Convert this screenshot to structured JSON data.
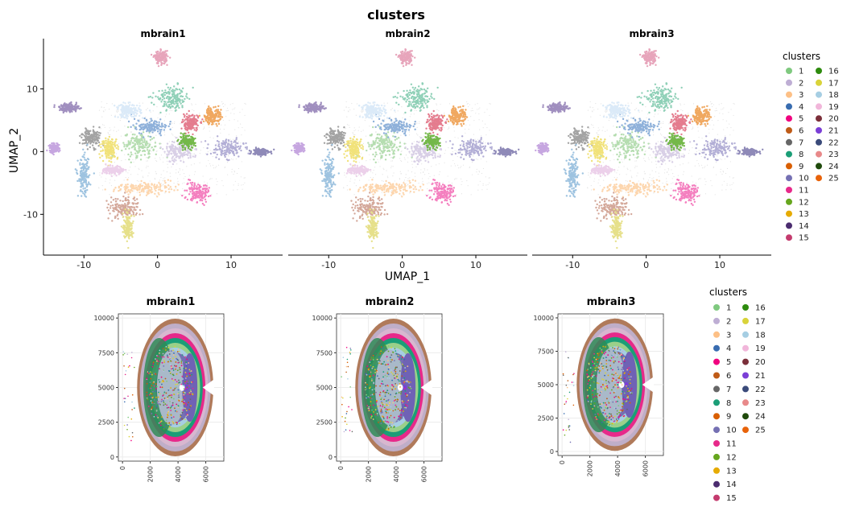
{
  "title": "clusters",
  "umap": {
    "xlabel": "UMAP_1",
    "ylabel": "UMAP_2",
    "xticks": [
      "-10",
      "0",
      "10"
    ],
    "xtick_values": [
      -10,
      0,
      10
    ],
    "yticks": [
      "10",
      "0",
      "-10"
    ],
    "ytick_values": [
      10,
      0,
      -10
    ],
    "xlim": [
      -15.5,
      17
    ],
    "ylim": [
      -16.5,
      18
    ],
    "panels": [
      "mbrain1",
      "mbrain2",
      "mbrain3"
    ]
  },
  "spatial": {
    "xticks": [
      "0",
      "2000",
      "4000",
      "6000"
    ],
    "xtick_values": [
      0,
      2000,
      4000,
      6000
    ],
    "yticks": [
      "10000",
      "7500",
      "5000",
      "2500",
      "0"
    ],
    "ytick_values": [
      10000,
      7500,
      5000,
      2500,
      0
    ],
    "xlim": [
      -300,
      7300
    ],
    "ylim": [
      -300,
      10300
    ],
    "panels": [
      "mbrain1",
      "mbrain2",
      "mbrain3"
    ]
  },
  "legend": {
    "title": "clusters",
    "items": [
      {
        "label": "1",
        "color": "#7fc97f"
      },
      {
        "label": "2",
        "color": "#beaed4"
      },
      {
        "label": "3",
        "color": "#fdc086"
      },
      {
        "label": "4",
        "color": "#386cb0"
      },
      {
        "label": "5",
        "color": "#f0027f"
      },
      {
        "label": "6",
        "color": "#bf5b17"
      },
      {
        "label": "7",
        "color": "#666666"
      },
      {
        "label": "8",
        "color": "#1b9e77"
      },
      {
        "label": "9",
        "color": "#d95f02"
      },
      {
        "label": "10",
        "color": "#7570b3"
      },
      {
        "label": "11",
        "color": "#e7298a"
      },
      {
        "label": "12",
        "color": "#66a61e"
      },
      {
        "label": "13",
        "color": "#e6ab02"
      },
      {
        "label": "14",
        "color": "#4b2c6f"
      },
      {
        "label": "15",
        "color": "#c43b6e"
      },
      {
        "label": "16",
        "color": "#2e8b0e"
      },
      {
        "label": "17",
        "color": "#d9d33a"
      },
      {
        "label": "18",
        "color": "#a6cee3"
      },
      {
        "label": "19",
        "color": "#f1b6da"
      },
      {
        "label": "20",
        "color": "#7b2f3a"
      },
      {
        "label": "21",
        "color": "#7b3fd6"
      },
      {
        "label": "22",
        "color": "#3a4a7a"
      },
      {
        "label": "23",
        "color": "#e8898a"
      },
      {
        "label": "24",
        "color": "#1f4a0c"
      },
      {
        "label": "25",
        "color": "#e8630a"
      }
    ]
  },
  "chart_data": [
    {
      "type": "scatter",
      "title": "mbrain1",
      "xlabel": "UMAP_1",
      "ylabel": "UMAP_2",
      "xlim": [
        -15.5,
        17
      ],
      "ylim": [
        -16.5,
        18
      ],
      "clusters": [
        {
          "name": "1",
          "color": "#b5ddb0",
          "center": [
            -2.5,
            1.0
          ],
          "spread": [
            2.2,
            1.8
          ]
        },
        {
          "name": "2",
          "color": "#d8cfe6",
          "center": [
            3.0,
            0.0
          ],
          "spread": [
            1.8,
            1.5
          ]
        },
        {
          "name": "3",
          "color": "#fdd6ae",
          "center": [
            -2.0,
            -5.8
          ],
          "spread": [
            3.5,
            0.9
          ]
        },
        {
          "name": "4",
          "color": "#8fb1da",
          "center": [
            -1.0,
            4.0
          ],
          "spread": [
            2.0,
            1.0
          ]
        },
        {
          "name": "5",
          "color": "#f47fbf",
          "center": [
            5.5,
            -6.5
          ],
          "spread": [
            1.3,
            1.5
          ]
        },
        {
          "name": "6",
          "color": "#d4a89a",
          "center": [
            -4.5,
            -9.0
          ],
          "spread": [
            2.0,
            1.4
          ]
        },
        {
          "name": "7",
          "color": "#a3a3a3",
          "center": [
            -9.0,
            2.2
          ],
          "spread": [
            1.2,
            1.3
          ]
        },
        {
          "name": "8",
          "color": "#8fd0b7",
          "center": [
            2.0,
            8.5
          ],
          "spread": [
            2.2,
            1.6
          ]
        },
        {
          "name": "9",
          "color": "#f0a860",
          "center": [
            7.5,
            5.8
          ],
          "spread": [
            1.0,
            1.3
          ]
        },
        {
          "name": "10",
          "color": "#b3afd6",
          "center": [
            9.5,
            0.5
          ],
          "spread": [
            2.0,
            1.3
          ]
        },
        {
          "name": "11",
          "color": "#e47c8e",
          "center": [
            4.5,
            4.5
          ],
          "spread": [
            1.0,
            1.2
          ]
        },
        {
          "name": "12",
          "color": "#74b84a",
          "center": [
            4.0,
            1.5
          ],
          "spread": [
            1.0,
            0.9
          ]
        },
        {
          "name": "13",
          "color": "#f1e27a",
          "center": [
            -6.5,
            0.5
          ],
          "spread": [
            1.0,
            1.5
          ]
        },
        {
          "name": "14",
          "color": "#e6e08a",
          "center": [
            -4.0,
            -12.0
          ],
          "spread": [
            0.6,
            1.8
          ]
        },
        {
          "name": "15",
          "color": "#e7a5bb",
          "center": [
            0.5,
            15.0
          ],
          "spread": [
            0.8,
            0.9
          ]
        },
        {
          "name": "16",
          "color": "#9ec3e0",
          "center": [
            -10.0,
            -4.0
          ],
          "spread": [
            0.7,
            2.8
          ]
        },
        {
          "name": "17",
          "color": "#dbeaf8",
          "center": [
            -4.0,
            6.5
          ],
          "spread": [
            1.5,
            1.0
          ]
        },
        {
          "name": "18",
          "color": "#a08fbf",
          "center": [
            -12.0,
            7.0
          ],
          "spread": [
            1.2,
            0.6
          ]
        },
        {
          "name": "19",
          "color": "#c6a6e0",
          "center": [
            -14.0,
            0.5
          ],
          "spread": [
            0.6,
            0.6
          ]
        },
        {
          "name": "20",
          "color": "#8f8ab8",
          "center": [
            14.0,
            0.0
          ],
          "spread": [
            1.0,
            0.5
          ]
        },
        {
          "name": "21",
          "color": "#ecd0ea",
          "center": [
            -6.0,
            -3.0
          ],
          "spread": [
            1.2,
            0.6
          ]
        }
      ]
    },
    {
      "type": "scatter",
      "title": "mbrain2",
      "xlabel": "UMAP_1",
      "ylabel": "UMAP_2",
      "xlim": [
        -15.5,
        17
      ],
      "ylim": [
        -16.5,
        18
      ],
      "same_clusters_as": "mbrain1"
    },
    {
      "type": "scatter",
      "title": "mbrain3",
      "xlabel": "UMAP_1",
      "ylabel": "UMAP_2",
      "xlim": [
        -15.5,
        17
      ],
      "ylim": [
        -16.5,
        18
      ],
      "same_clusters_as": "mbrain1"
    },
    {
      "type": "scatter",
      "title": "mbrain1",
      "xlim": [
        -300,
        7300
      ],
      "ylim": [
        -300,
        10300
      ],
      "tissue": {
        "x_range": [
          800,
          6500
        ],
        "y_range": [
          0,
          9900
        ]
      }
    },
    {
      "type": "scatter",
      "title": "mbrain2",
      "xlim": [
        -300,
        7300
      ],
      "ylim": [
        -300,
        10300
      ],
      "tissue": {
        "x_range": [
          800,
          6500
        ],
        "y_range": [
          0,
          9900
        ]
      }
    },
    {
      "type": "scatter",
      "title": "mbrain3",
      "xlim": [
        -300,
        7300
      ],
      "ylim": [
        -300,
        10300
      ],
      "tissue": {
        "x_range": [
          800,
          6500
        ],
        "y_range": [
          0,
          9900
        ]
      }
    }
  ]
}
